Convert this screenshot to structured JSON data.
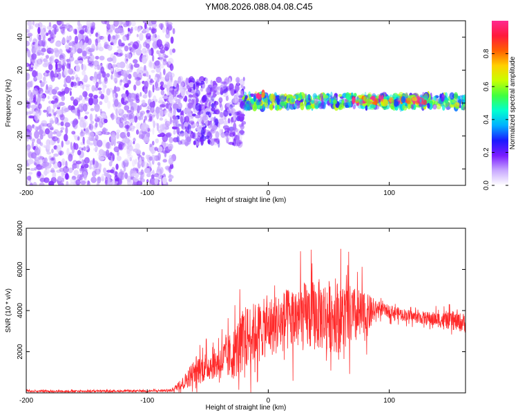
{
  "title": "YM08.2026.088.04.08.C45",
  "chart_data": [
    {
      "type": "heatmap",
      "xlabel": "Height of straight line (km)",
      "ylabel": "Frequency (Hz)",
      "xlim": [
        -200,
        163
      ],
      "ylim": [
        -50,
        50
      ],
      "x_ticks": [
        -200,
        -100,
        0,
        100
      ],
      "y_ticks": [
        -40,
        -20,
        0,
        20,
        40
      ],
      "colorbar": {
        "label": "Normalized spectral amplitude",
        "range": [
          0,
          1
        ],
        "ticks": [
          "0.0",
          "0.2",
          "0.4",
          "0.6",
          "0.8"
        ],
        "colormap": [
          "#ffffff",
          "#c8a8ff",
          "#7a1cff",
          "#1a1aff",
          "#00b0ff",
          "#00ffd0",
          "#40ff40",
          "#c8ff00",
          "#ffd000",
          "#ff6000",
          "#ff1a3c",
          "#ff2a90"
        ]
      },
      "regions": [
        {
          "x_range": [
            -200,
            -78
          ],
          "freq_range": [
            -50,
            50
          ],
          "amplitude": 0.12
        },
        {
          "x_range": [
            -78,
            -20
          ],
          "freq_range": [
            -25,
            15
          ],
          "amplitude": 0.15
        },
        {
          "x_range": [
            -20,
            163
          ],
          "freq_range": [
            -3,
            5
          ],
          "amplitude": 0.35
        },
        {
          "x_range": [
            -10,
            -4
          ],
          "freq_range": [
            3,
            6
          ],
          "amplitude": 0.95
        },
        {
          "x_range": [
            70,
            130
          ],
          "freq_range": [
            0,
            3
          ],
          "amplitude": 0.9
        }
      ]
    },
    {
      "type": "line",
      "xlabel": "Height of straight line (km)",
      "ylabel": "SNR (10 * v/v)",
      "xlim": [
        -200,
        163
      ],
      "ylim": [
        0,
        8000
      ],
      "x_ticks": [
        -200,
        -100,
        0,
        100
      ],
      "y_ticks": [
        2000,
        4000,
        6000,
        8000
      ],
      "color": "#ff2a2a",
      "envelope": {
        "x": [
          -200,
          -150,
          -100,
          -80,
          -70,
          -60,
          -45,
          -30,
          -20,
          -10,
          0,
          20,
          40,
          60,
          80,
          90,
          120,
          163
        ],
        "mean": [
          80,
          80,
          90,
          120,
          500,
          1100,
          1400,
          1800,
          2600,
          3000,
          3200,
          3600,
          3800,
          3700,
          3700,
          4100,
          3700,
          3400
        ],
        "spread": [
          60,
          60,
          60,
          80,
          400,
          900,
          900,
          1500,
          2000,
          1800,
          1800,
          2000,
          2200,
          2200,
          1500,
          400,
          350,
          600
        ]
      }
    }
  ]
}
